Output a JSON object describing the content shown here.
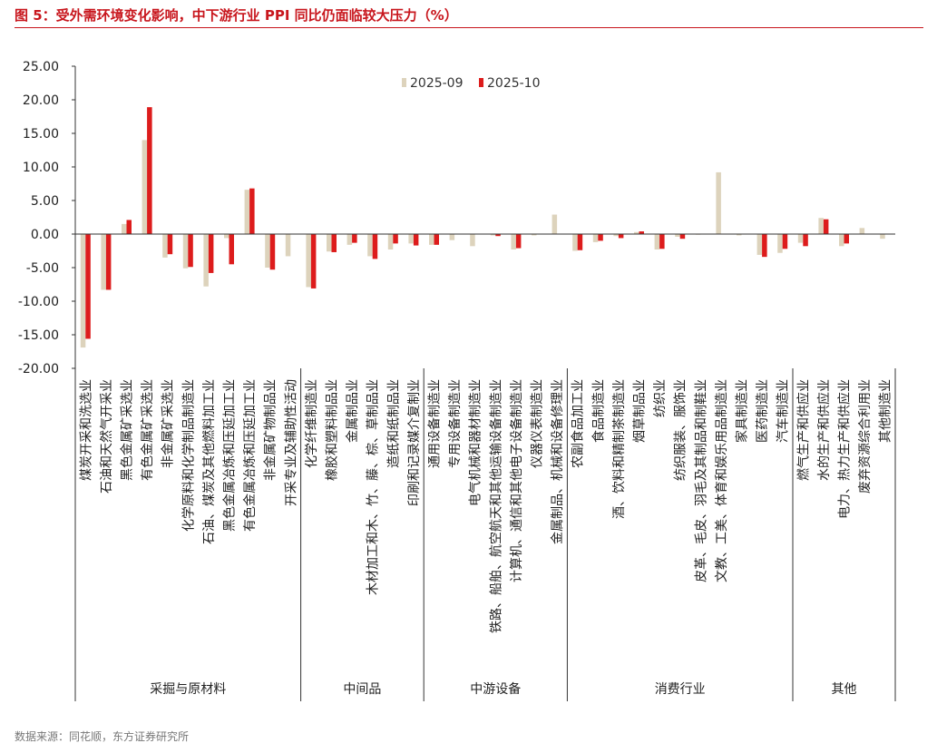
{
  "figure": {
    "title": "图 5：受外需环境变化影响，中下游行业 PPI 同比仍面临较大压力（%）",
    "source": "数据来源：同花顺，东方证券研究所"
  },
  "colors": {
    "accent": "#c8161d",
    "series_2025_09": "#ddd3bc",
    "series_2025_10": "#dd1c1c",
    "axis": "#333333"
  },
  "chart_data": {
    "type": "bar",
    "ylim": [
      -20,
      25
    ],
    "yticks": [
      "25.00",
      "20.00",
      "15.00",
      "10.00",
      "5.00",
      "0.00",
      "-5.00",
      "-10.00",
      "-15.00",
      "-20.00"
    ],
    "legend_position": "top-center",
    "categories": [
      "煤炭开采和洗选业",
      "石油和天然气开采业",
      "黑色金属矿采选业",
      "有色金属矿采选业",
      "非金属矿采选业",
      "化学原料和化学制品制造业",
      "石油、煤炭及其他燃料加工业",
      "黑色金属冶炼和压延加工业",
      "有色金属冶炼和压延加工业",
      "非金属矿物制品业",
      "开采专业及辅助性活动",
      "化学纤维制造业",
      "橡胶和塑料制品业",
      "金属制品业",
      "木材加工和木、竹、藤、棕、草制品业",
      "造纸和纸制品业",
      "印刷和记录媒介复制业",
      "通用设备制造业",
      "专用设备制造业",
      "电气机械和器材制造业",
      "铁路、船舶、航空航天和其他运输设备制造业",
      "计算机、通信和其他电子设备制造业",
      "仪器仪表制造业",
      "金属制品、机械和设备修理业",
      "农副食品加工业",
      "食品制造业",
      "酒、饮料和精制茶制造业",
      "烟草制品业",
      "纺织业",
      "纺织服装、服饰业",
      "皮革、毛皮、羽毛及其制品和制鞋业",
      "文教、工美、体育和娱乐用品制造业",
      "家具制造业",
      "医药制造业",
      "汽车制造业",
      "燃气生产和供应业",
      "水的生产和供应业",
      "电力、热力生产和供应业",
      "废弃资源综合利用业",
      "其他制造业"
    ],
    "series": [
      {
        "name": "2025-09",
        "values": [
          -16.9,
          -8.3,
          1.5,
          14.0,
          -3.5,
          -5.1,
          -7.8,
          -0.6,
          6.6,
          -5.0,
          -3.3,
          -7.9,
          -2.6,
          -1.6,
          -3.3,
          -2.3,
          -1.4,
          -1.6,
          -0.9,
          -1.8,
          -0.2,
          -2.3,
          -0.2,
          2.9,
          -2.5,
          -1.2,
          -0.3,
          0.3,
          -2.3,
          -0.4,
          -0.1,
          9.2,
          -0.2,
          -3.1,
          -2.8,
          -1.3,
          2.4,
          -1.8,
          0.9,
          -0.7
        ]
      },
      {
        "name": "2025-10",
        "values": [
          -15.6,
          -8.3,
          2.1,
          18.9,
          -3.0,
          -4.9,
          -5.8,
          -4.5,
          6.8,
          -5.3,
          0.0,
          -8.1,
          -2.7,
          -1.3,
          -3.7,
          -1.4,
          -1.7,
          -1.6,
          0.0,
          0.0,
          -0.3,
          -2.1,
          0.0,
          0.0,
          -2.4,
          -1.0,
          -0.6,
          0.4,
          -2.2,
          -0.7,
          0.0,
          0.0,
          0.0,
          -3.4,
          -2.2,
          -1.8,
          2.2,
          -1.4,
          0.0,
          0.0
        ]
      }
    ],
    "groups": [
      {
        "label": "采掘与原材料",
        "start": 0,
        "end": 10
      },
      {
        "label": "中间品",
        "start": 11,
        "end": 16
      },
      {
        "label": "中游设备",
        "start": 17,
        "end": 23
      },
      {
        "label": "消费行业",
        "start": 24,
        "end": 34
      },
      {
        "label": "其他",
        "start": 35,
        "end": 39
      }
    ]
  }
}
